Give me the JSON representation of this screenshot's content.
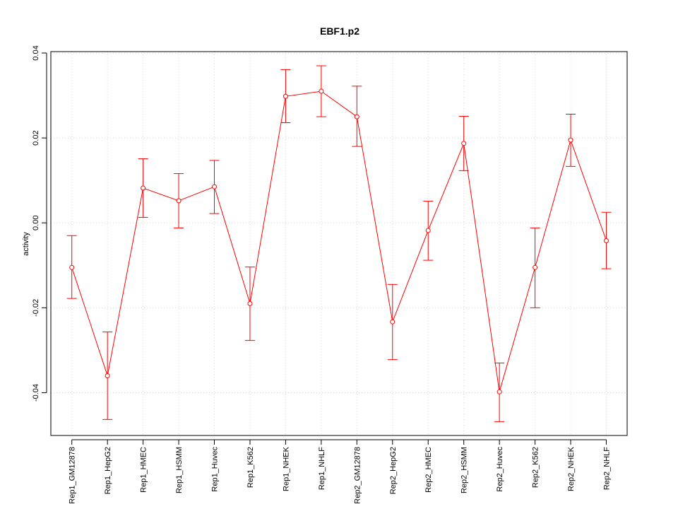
{
  "chart_data": {
    "type": "line",
    "title": "EBF1.p2",
    "xlabel": "",
    "ylabel": "activity",
    "ylim": [
      -0.05,
      0.04
    ],
    "yticks": [
      -0.04,
      -0.02,
      0.0,
      0.02,
      0.04
    ],
    "ytick_labels": [
      "-0.04",
      "-0.02",
      "0.00",
      "0.02",
      "0.04"
    ],
    "grid": true,
    "categories": [
      "Rep1_GM12878",
      "Rep1_HepG2",
      "Rep1_HMEC",
      "Rep1_HSMM",
      "Rep1_Huvec",
      "Rep1_K562",
      "Rep1_NHEK",
      "Rep1_NHLF",
      "Rep2_GM12878",
      "Rep2_HepG2",
      "Rep2_HMEC",
      "Rep2_HSMM",
      "Rep2_Huvec",
      "Rep2_K562",
      "Rep2_NHEK",
      "Rep2_NHLF"
    ],
    "series": [
      {
        "color": "#ff0000",
        "values": [
          -0.0105,
          -0.036,
          0.0082,
          0.0052,
          0.0085,
          -0.019,
          0.0298,
          0.031,
          0.025,
          -0.0233,
          -0.0018,
          0.0187,
          -0.0398,
          -0.0105,
          0.0195,
          -0.0042
        ],
        "lower": [
          -0.0178,
          -0.0463,
          0.0013,
          -0.0012,
          0.0022,
          -0.0277,
          0.0236,
          0.025,
          0.018,
          -0.0322,
          -0.0088,
          0.0123,
          -0.0468,
          -0.02,
          0.0133,
          -0.0108
        ],
        "upper": [
          -0.003,
          -0.0257,
          0.0151,
          0.0116,
          0.0147,
          -0.0104,
          0.0361,
          0.037,
          0.0322,
          -0.0145,
          0.0051,
          0.0251,
          -0.033,
          -0.0012,
          0.0256,
          0.0025
        ]
      }
    ]
  }
}
